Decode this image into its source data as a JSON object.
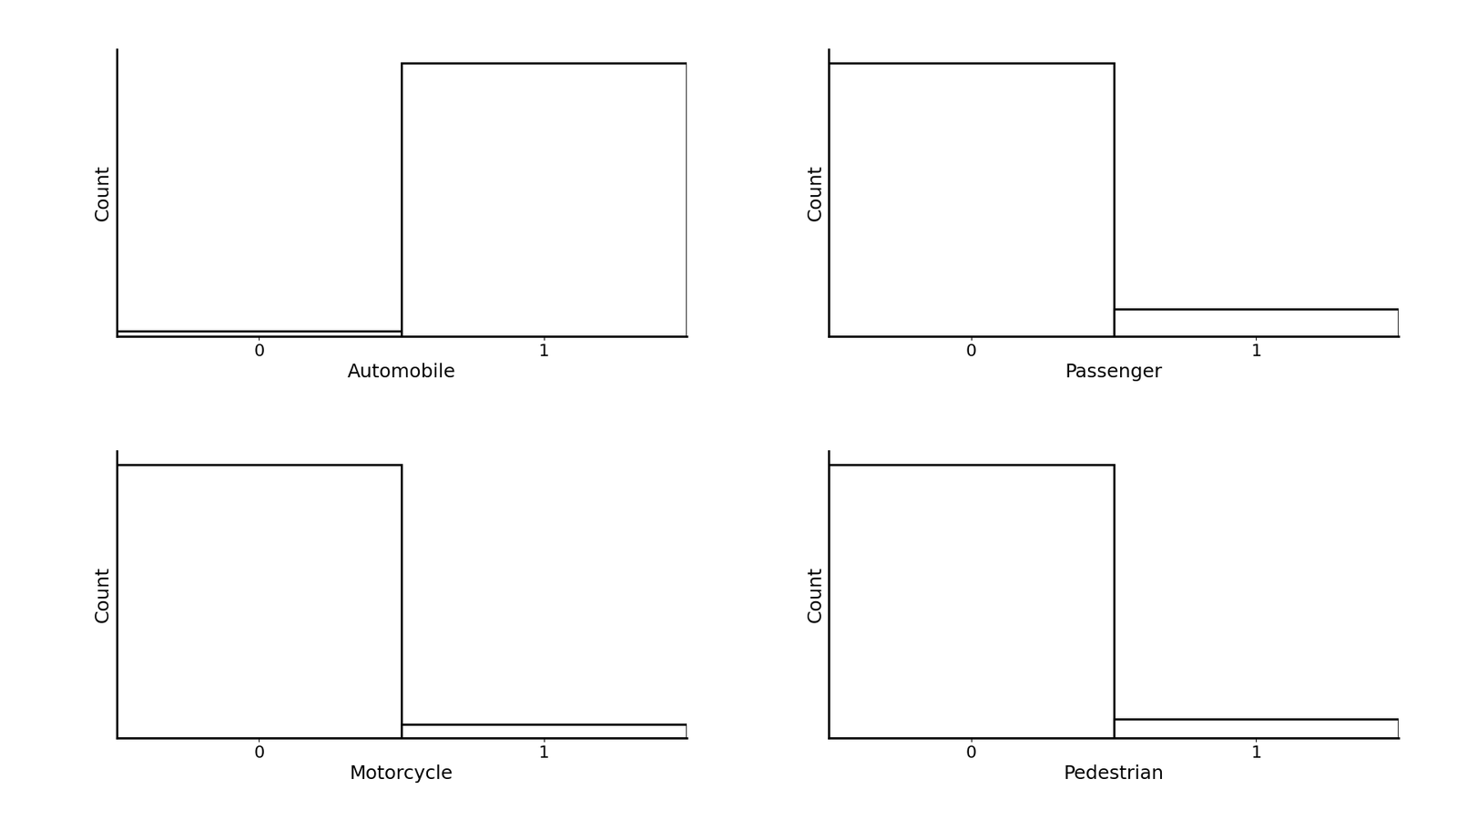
{
  "chart_data": [
    {
      "type": "bar",
      "categories": [
        "0",
        "1"
      ],
      "values": [
        2,
        100
      ],
      "xlabel": "Automobile",
      "ylabel": "Count",
      "ylim": [
        0,
        105
      ],
      "tick_labels": "x",
      "color": "#ffffff"
    },
    {
      "type": "bar",
      "categories": [
        "0",
        "1"
      ],
      "values": [
        100,
        10
      ],
      "xlabel": "Passenger",
      "ylabel": "Count",
      "ylim": [
        0,
        105
      ],
      "tick_labels": "x",
      "color": "#ffffff"
    },
    {
      "type": "bar",
      "categories": [
        "0",
        "1"
      ],
      "values": [
        100,
        5
      ],
      "xlabel": "Motorcycle",
      "ylabel": "Count",
      "ylim": [
        0,
        105
      ],
      "tick_labels": "x",
      "color": "#ffffff"
    },
    {
      "type": "bar",
      "categories": [
        "0",
        "1"
      ],
      "values": [
        100,
        7
      ],
      "xlabel": "Pedestrian",
      "ylabel": "Count",
      "ylim": [
        0,
        105
      ],
      "tick_labels": "x",
      "color": "#ffffff"
    }
  ]
}
